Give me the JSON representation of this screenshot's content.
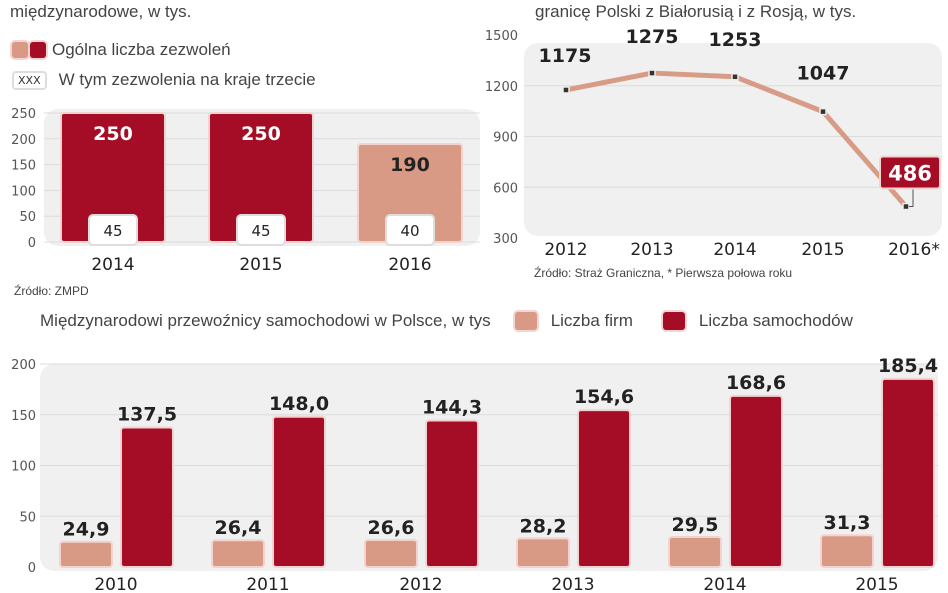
{
  "colors": {
    "dark_red": "#a50d27",
    "salmon": "#d99a85",
    "panel": "#f0f0f0",
    "grid": "#dcdcdc",
    "line": "#d89b86"
  },
  "chart_data": [
    {
      "type": "bar",
      "title": "międzynarodowe, w tys.",
      "legend": [
        "Ogólna liczba zezwoleń",
        "W tym zezwolenia na kraje trzecie"
      ],
      "legend_badge": "XXX",
      "categories": [
        "2014",
        "2015",
        "2016"
      ],
      "series": [
        {
          "name": "Ogólna liczba zezwoleń",
          "values": [
            250,
            250,
            190
          ]
        },
        {
          "name": "W tym zezwolenia na kraje trzecie",
          "values": [
            45,
            45,
            40
          ]
        }
      ],
      "labels_total": [
        "250",
        "250",
        "190"
      ],
      "labels_sub": [
        "45",
        "45",
        "40"
      ],
      "yticks": [
        "0",
        "50",
        "100",
        "150",
        "200",
        "250"
      ],
      "ylim": [
        0,
        250
      ],
      "source": "Źródło: ZMPD"
    },
    {
      "type": "line",
      "title": "granicę Polski z Białorusią i z Rosją, w tys.",
      "categories": [
        "2012",
        "2013",
        "2014",
        "2015",
        "2016*"
      ],
      "values": [
        1175,
        1275,
        1253,
        1047,
        486
      ],
      "labels": [
        "1175",
        "1275",
        "1253",
        "1047",
        "486"
      ],
      "yticks": [
        "300",
        "600",
        "900",
        "1200",
        "1500"
      ],
      "ylim": [
        300,
        1500
      ],
      "source": "Źródło: Straż Graniczna, * Pierwsza połowa roku"
    },
    {
      "type": "bar",
      "title": "Międzynarodowi przewoźnicy samochodowi w Polsce, w tys",
      "categories": [
        "2010",
        "2011",
        "2012",
        "2013",
        "2014",
        "2015"
      ],
      "series": [
        {
          "name": "Liczba firm",
          "values": [
            24.9,
            26.4,
            26.6,
            28.2,
            29.5,
            31.3
          ],
          "labels": [
            "24,9",
            "26,4",
            "26,6",
            "28,2",
            "29,5",
            "31,3"
          ]
        },
        {
          "name": "Liczba samochodów",
          "values": [
            137.5,
            148.0,
            144.3,
            154.6,
            168.6,
            185.4
          ],
          "labels": [
            "137,5",
            "148,0",
            "144,3",
            "154,6",
            "168,6",
            "185,4"
          ]
        }
      ],
      "yticks": [
        "0",
        "50",
        "100",
        "150",
        "200"
      ],
      "ylim": [
        0,
        200
      ]
    }
  ]
}
